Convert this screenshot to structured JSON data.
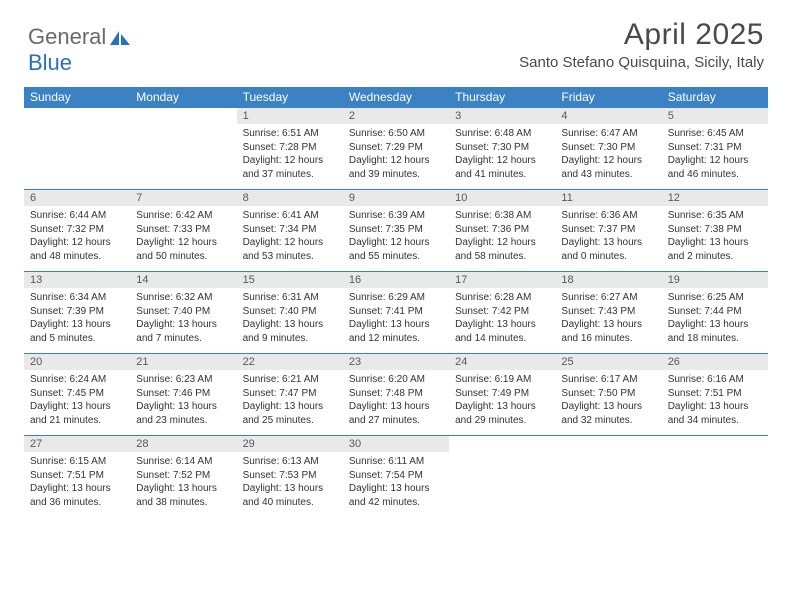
{
  "logo": {
    "text1": "General",
    "text2": "Blue"
  },
  "title": "April 2025",
  "location": "Santo Stefano Quisquina, Sicily, Italy",
  "colors": {
    "header_bg": "#3a82c4",
    "daynum_bg": "#e9e9e9",
    "rule": "#3a82c4",
    "text": "#333333"
  },
  "days_of_week": [
    "Sunday",
    "Monday",
    "Tuesday",
    "Wednesday",
    "Thursday",
    "Friday",
    "Saturday"
  ],
  "weeks": [
    [
      null,
      null,
      {
        "n": "1",
        "sr": "6:51 AM",
        "ss": "7:28 PM",
        "dl": "12 hours and 37 minutes."
      },
      {
        "n": "2",
        "sr": "6:50 AM",
        "ss": "7:29 PM",
        "dl": "12 hours and 39 minutes."
      },
      {
        "n": "3",
        "sr": "6:48 AM",
        "ss": "7:30 PM",
        "dl": "12 hours and 41 minutes."
      },
      {
        "n": "4",
        "sr": "6:47 AM",
        "ss": "7:30 PM",
        "dl": "12 hours and 43 minutes."
      },
      {
        "n": "5",
        "sr": "6:45 AM",
        "ss": "7:31 PM",
        "dl": "12 hours and 46 minutes."
      }
    ],
    [
      {
        "n": "6",
        "sr": "6:44 AM",
        "ss": "7:32 PM",
        "dl": "12 hours and 48 minutes."
      },
      {
        "n": "7",
        "sr": "6:42 AM",
        "ss": "7:33 PM",
        "dl": "12 hours and 50 minutes."
      },
      {
        "n": "8",
        "sr": "6:41 AM",
        "ss": "7:34 PM",
        "dl": "12 hours and 53 minutes."
      },
      {
        "n": "9",
        "sr": "6:39 AM",
        "ss": "7:35 PM",
        "dl": "12 hours and 55 minutes."
      },
      {
        "n": "10",
        "sr": "6:38 AM",
        "ss": "7:36 PM",
        "dl": "12 hours and 58 minutes."
      },
      {
        "n": "11",
        "sr": "6:36 AM",
        "ss": "7:37 PM",
        "dl": "13 hours and 0 minutes."
      },
      {
        "n": "12",
        "sr": "6:35 AM",
        "ss": "7:38 PM",
        "dl": "13 hours and 2 minutes."
      }
    ],
    [
      {
        "n": "13",
        "sr": "6:34 AM",
        "ss": "7:39 PM",
        "dl": "13 hours and 5 minutes."
      },
      {
        "n": "14",
        "sr": "6:32 AM",
        "ss": "7:40 PM",
        "dl": "13 hours and 7 minutes."
      },
      {
        "n": "15",
        "sr": "6:31 AM",
        "ss": "7:40 PM",
        "dl": "13 hours and 9 minutes."
      },
      {
        "n": "16",
        "sr": "6:29 AM",
        "ss": "7:41 PM",
        "dl": "13 hours and 12 minutes."
      },
      {
        "n": "17",
        "sr": "6:28 AM",
        "ss": "7:42 PM",
        "dl": "13 hours and 14 minutes."
      },
      {
        "n": "18",
        "sr": "6:27 AM",
        "ss": "7:43 PM",
        "dl": "13 hours and 16 minutes."
      },
      {
        "n": "19",
        "sr": "6:25 AM",
        "ss": "7:44 PM",
        "dl": "13 hours and 18 minutes."
      }
    ],
    [
      {
        "n": "20",
        "sr": "6:24 AM",
        "ss": "7:45 PM",
        "dl": "13 hours and 21 minutes."
      },
      {
        "n": "21",
        "sr": "6:23 AM",
        "ss": "7:46 PM",
        "dl": "13 hours and 23 minutes."
      },
      {
        "n": "22",
        "sr": "6:21 AM",
        "ss": "7:47 PM",
        "dl": "13 hours and 25 minutes."
      },
      {
        "n": "23",
        "sr": "6:20 AM",
        "ss": "7:48 PM",
        "dl": "13 hours and 27 minutes."
      },
      {
        "n": "24",
        "sr": "6:19 AM",
        "ss": "7:49 PM",
        "dl": "13 hours and 29 minutes."
      },
      {
        "n": "25",
        "sr": "6:17 AM",
        "ss": "7:50 PM",
        "dl": "13 hours and 32 minutes."
      },
      {
        "n": "26",
        "sr": "6:16 AM",
        "ss": "7:51 PM",
        "dl": "13 hours and 34 minutes."
      }
    ],
    [
      {
        "n": "27",
        "sr": "6:15 AM",
        "ss": "7:51 PM",
        "dl": "13 hours and 36 minutes."
      },
      {
        "n": "28",
        "sr": "6:14 AM",
        "ss": "7:52 PM",
        "dl": "13 hours and 38 minutes."
      },
      {
        "n": "29",
        "sr": "6:13 AM",
        "ss": "7:53 PM",
        "dl": "13 hours and 40 minutes."
      },
      {
        "n": "30",
        "sr": "6:11 AM",
        "ss": "7:54 PM",
        "dl": "13 hours and 42 minutes."
      },
      null,
      null,
      null
    ]
  ],
  "labels": {
    "sunrise": "Sunrise:",
    "sunset": "Sunset:",
    "daylight": "Daylight:"
  }
}
